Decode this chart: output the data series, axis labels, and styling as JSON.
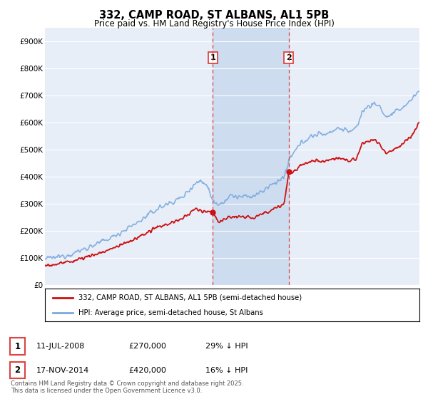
{
  "title": "332, CAMP ROAD, ST ALBANS, AL1 5PB",
  "subtitle": "Price paid vs. HM Land Registry's House Price Index (HPI)",
  "ylim": [
    0,
    950000
  ],
  "yticks": [
    0,
    100000,
    200000,
    300000,
    400000,
    500000,
    600000,
    700000,
    800000,
    900000
  ],
  "ytick_labels": [
    "£0",
    "£100K",
    "£200K",
    "£300K",
    "£400K",
    "£500K",
    "£600K",
    "£700K",
    "£800K",
    "£900K"
  ],
  "background_color": "#ffffff",
  "plot_bg_color": "#e8eef8",
  "grid_color": "#ffffff",
  "hpi_color": "#7aaadd",
  "price_color": "#cc1111",
  "sale1_date": 2008.53,
  "sale1_price": 270000,
  "sale1_label": "1",
  "sale2_date": 2014.88,
  "sale2_price": 420000,
  "sale2_label": "2",
  "shade_color": "#c8d8ee",
  "vline_color": "#dd4444",
  "legend_line1": "332, CAMP ROAD, ST ALBANS, AL1 5PB (semi-detached house)",
  "legend_line2": "HPI: Average price, semi-detached house, St Albans",
  "footer": "Contains HM Land Registry data © Crown copyright and database right 2025.\nThis data is licensed under the Open Government Licence v3.0.",
  "xlim_start": 1994.5,
  "xlim_end": 2025.8
}
